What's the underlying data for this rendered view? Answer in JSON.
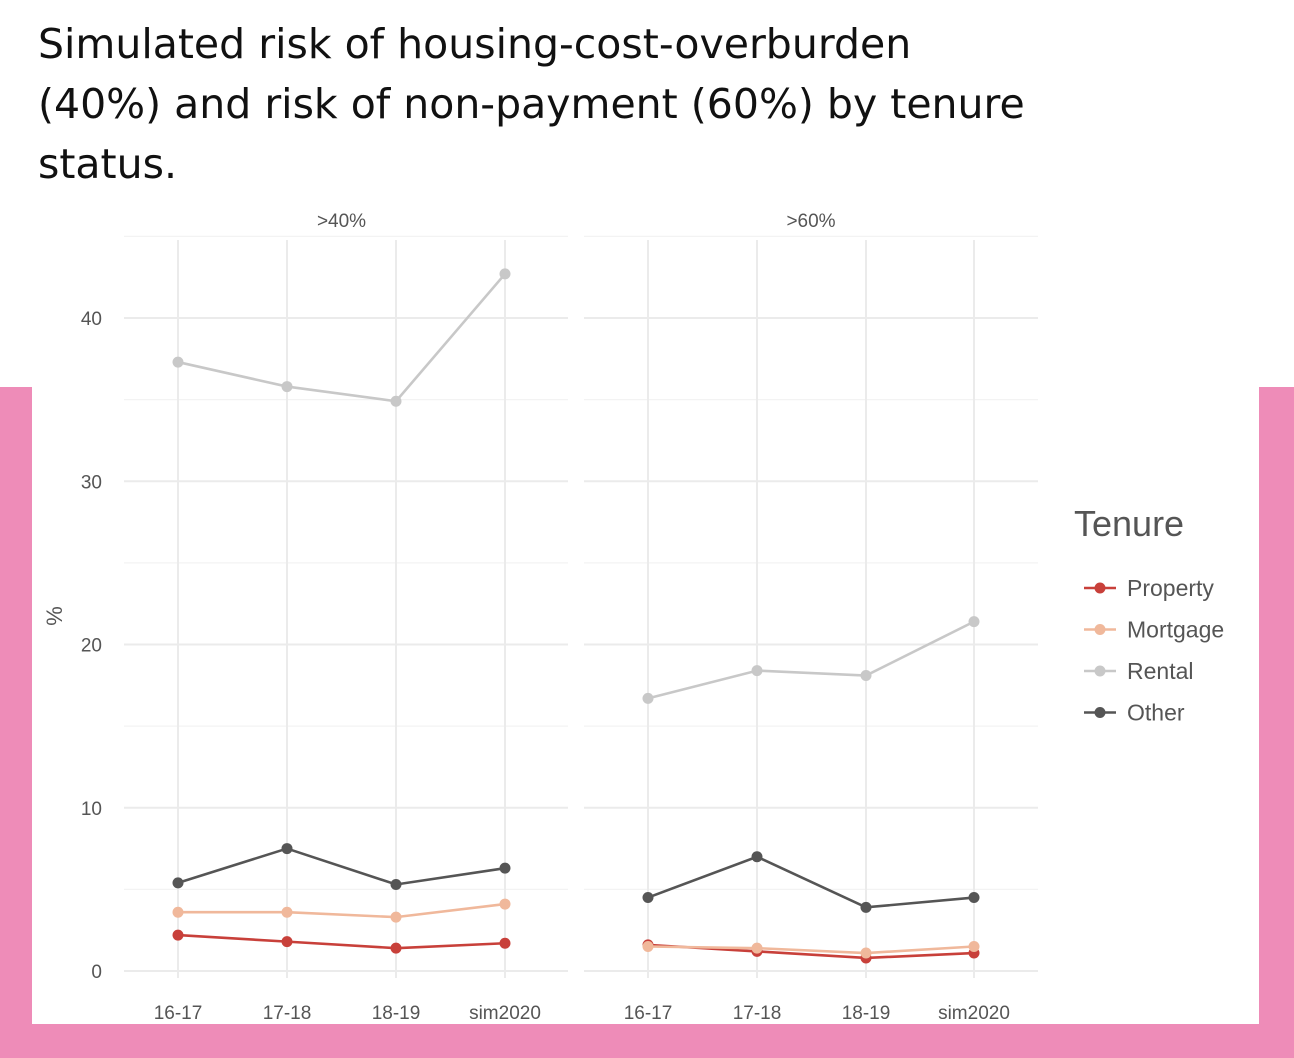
{
  "chart_data": {
    "type": "line",
    "title": "Simulated risk of housing-cost-overburden\n(40%) and risk of non-payment (60%) by tenure\nstatus.",
    "ylabel": "%",
    "xlabel": "",
    "categories": [
      "16-17",
      "17-18",
      "18-19",
      "sim2020"
    ],
    "ylim": [
      0,
      45
    ],
    "yticks": [
      "0",
      "10",
      "20",
      "30",
      "40"
    ],
    "grid": true,
    "legend": {
      "title": "Tenure",
      "placement": "right"
    },
    "panels": [
      {
        "label": ">40%",
        "series": [
          {
            "name": "Property",
            "values": [
              2.2,
              1.8,
              1.4,
              1.7
            ]
          },
          {
            "name": "Mortgage",
            "values": [
              3.6,
              3.6,
              3.3,
              4.1
            ]
          },
          {
            "name": "Rental",
            "values": [
              37.3,
              35.8,
              34.9,
              42.7
            ]
          },
          {
            "name": "Other",
            "values": [
              5.4,
              7.5,
              5.3,
              6.3
            ]
          }
        ]
      },
      {
        "label": ">60%",
        "series": [
          {
            "name": "Property",
            "values": [
              1.6,
              1.2,
              0.8,
              1.1
            ]
          },
          {
            "name": "Mortgage",
            "values": [
              1.5,
              1.4,
              1.1,
              1.5
            ]
          },
          {
            "name": "Rental",
            "values": [
              16.7,
              18.4,
              18.1,
              21.4
            ]
          },
          {
            "name": "Other",
            "values": [
              4.5,
              7.0,
              3.9,
              4.5
            ]
          }
        ]
      }
    ],
    "colors": {
      "Property": "#c8403a",
      "Mortgage": "#f0b89b",
      "Rental": "#c8c8c8",
      "Other": "#555555"
    }
  }
}
